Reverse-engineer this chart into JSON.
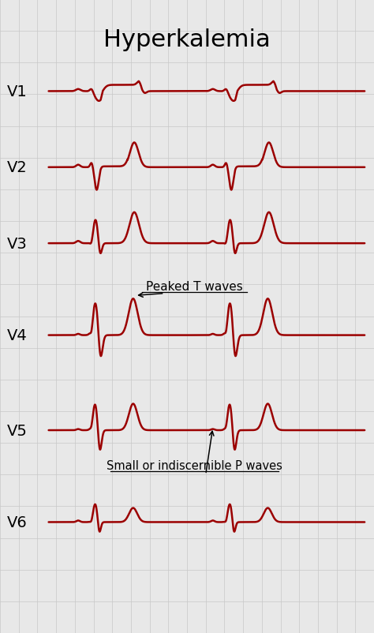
{
  "title": "Hyperkalemia",
  "title_fontsize": 22,
  "lead_labels": [
    "V1",
    "V2",
    "V3",
    "V4",
    "V5",
    "V6"
  ],
  "ecg_color": "#9B0000",
  "bg_color": "#e8e8e8",
  "grid_color": "#c8c8c8",
  "line_width": 1.8,
  "annotation1_text": "Peaked T waves",
  "annotation2_text": "Small or indiscernible P waves",
  "lead_label_fontsize": 14,
  "annotation_fontsize": 11
}
